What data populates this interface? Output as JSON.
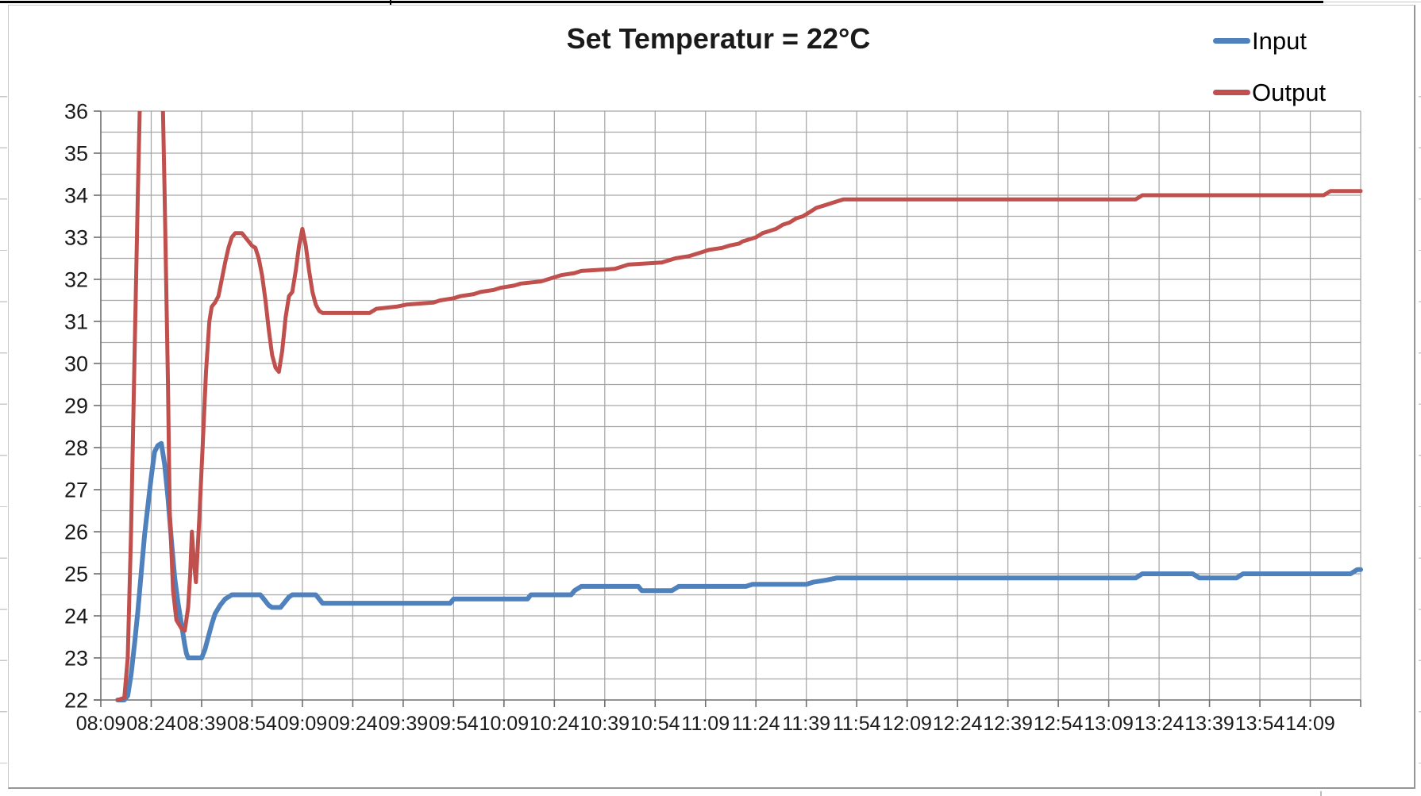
{
  "title": {
    "text": "Set Temperatur = 22°C"
  },
  "legend": {
    "entries": [
      {
        "label": "Input",
        "color": "#4F81BD"
      },
      {
        "label": "Output",
        "color": "#C0504D"
      }
    ]
  },
  "chart_data": {
    "type": "line",
    "title": "Set Temperatur = 22°C",
    "xlabel": "",
    "ylabel": "",
    "x_unit": "time (hh:mm)",
    "x_tick_labels": [
      "08:09",
      "08:24",
      "08:39",
      "08:54",
      "09:09",
      "09:24",
      "09:39",
      "09:54",
      "10:09",
      "10:24",
      "10:39",
      "10:54",
      "11:09",
      "11:24",
      "11:39",
      "11:54",
      "12:09",
      "12:24",
      "12:39",
      "12:54",
      "13:09",
      "13:24",
      "13:39",
      "13:54",
      "14:09"
    ],
    "x_tick_interval_minutes": 15,
    "x_range_minutes": [
      0,
      375
    ],
    "ylim": [
      22,
      36
    ],
    "y_major_step": 1,
    "y_minor_step": 0.5,
    "grid": {
      "major": true,
      "minor": true,
      "color": "#a6a6a6"
    },
    "legend_position": "top-right",
    "axis_color": "#6e6e6e",
    "label_color": "#1a1a1a",
    "series": [
      {
        "name": "Input",
        "color": "#4F81BD",
        "width": 6,
        "points": [
          [
            5,
            22
          ],
          [
            7,
            22
          ],
          [
            8,
            22.1
          ],
          [
            9,
            22.6
          ],
          [
            10,
            23.3
          ],
          [
            11,
            24.1
          ],
          [
            12,
            25
          ],
          [
            13,
            25.9
          ],
          [
            14,
            26.6
          ],
          [
            15,
            27.3
          ],
          [
            16,
            27.9
          ],
          [
            17,
            28.05
          ],
          [
            18,
            28.1
          ],
          [
            19,
            27.6
          ],
          [
            20,
            26.8
          ],
          [
            21,
            25.8
          ],
          [
            22,
            24.9
          ],
          [
            23,
            24.3
          ],
          [
            24,
            23.8
          ],
          [
            25,
            23.3
          ],
          [
            25.5,
            23.1
          ],
          [
            26,
            23
          ],
          [
            30,
            23
          ],
          [
            31,
            23.2
          ],
          [
            32,
            23.5
          ],
          [
            33,
            23.8
          ],
          [
            34,
            24.05
          ],
          [
            35.5,
            24.25
          ],
          [
            37,
            24.4
          ],
          [
            39,
            24.5
          ],
          [
            47.5,
            24.5
          ],
          [
            48.5,
            24.4
          ],
          [
            50,
            24.25
          ],
          [
            51,
            24.2
          ],
          [
            53.5,
            24.2
          ],
          [
            54.5,
            24.3
          ],
          [
            56,
            24.45
          ],
          [
            57,
            24.5
          ],
          [
            64,
            24.5
          ],
          [
            65,
            24.4
          ],
          [
            66,
            24.3
          ],
          [
            104,
            24.3
          ],
          [
            105,
            24.4
          ],
          [
            127,
            24.4
          ],
          [
            128,
            24.5
          ],
          [
            140,
            24.5
          ],
          [
            141,
            24.6
          ],
          [
            143,
            24.7
          ],
          [
            160,
            24.7
          ],
          [
            161,
            24.6
          ],
          [
            170,
            24.6
          ],
          [
            172,
            24.7
          ],
          [
            192,
            24.7
          ],
          [
            194,
            24.75
          ],
          [
            210,
            24.75
          ],
          [
            212,
            24.8
          ],
          [
            216,
            24.85
          ],
          [
            219,
            24.9
          ],
          [
            308,
            24.9
          ],
          [
            310,
            25
          ],
          [
            325,
            25
          ],
          [
            327,
            24.9
          ],
          [
            338,
            24.9
          ],
          [
            340,
            25
          ],
          [
            372,
            25
          ],
          [
            374,
            25.1
          ],
          [
            375,
            25.1
          ]
        ]
      },
      {
        "name": "Output",
        "color": "#C0504D",
        "width": 5,
        "points": [
          [
            5,
            22
          ],
          [
            7,
            22.05
          ],
          [
            8,
            23
          ],
          [
            9,
            26
          ],
          [
            10,
            30
          ],
          [
            11,
            34
          ],
          [
            12,
            37.5
          ],
          [
            13,
            39.5
          ],
          [
            17,
            39.5
          ],
          [
            18,
            38
          ],
          [
            19,
            34
          ],
          [
            20,
            29.5
          ],
          [
            20.5,
            26.5
          ],
          [
            21.5,
            24.6
          ],
          [
            22.5,
            23.9
          ],
          [
            24,
            23.7
          ],
          [
            25,
            23.65
          ],
          [
            26,
            24.2
          ],
          [
            26.6,
            25
          ],
          [
            27.1,
            26
          ],
          [
            27.7,
            25.3
          ],
          [
            28.3,
            24.8
          ],
          [
            29.3,
            26.3
          ],
          [
            30.3,
            28
          ],
          [
            31.3,
            29.8
          ],
          [
            32.3,
            31
          ],
          [
            33,
            31.35
          ],
          [
            34,
            31.45
          ],
          [
            35,
            31.6
          ],
          [
            36,
            32
          ],
          [
            37,
            32.4
          ],
          [
            38,
            32.75
          ],
          [
            39,
            33
          ],
          [
            40,
            33.1
          ],
          [
            42,
            33.1
          ],
          [
            43,
            33
          ],
          [
            44,
            32.9
          ],
          [
            45,
            32.8
          ],
          [
            46,
            32.75
          ],
          [
            47,
            32.5
          ],
          [
            48,
            32.1
          ],
          [
            49,
            31.5
          ],
          [
            50,
            30.8
          ],
          [
            51,
            30.2
          ],
          [
            52,
            29.9
          ],
          [
            53,
            29.8
          ],
          [
            54,
            30.3
          ],
          [
            55,
            31.1
          ],
          [
            56,
            31.6
          ],
          [
            57,
            31.7
          ],
          [
            58,
            32.2
          ],
          [
            59,
            32.8
          ],
          [
            60,
            33.2
          ],
          [
            61,
            32.8
          ],
          [
            62,
            32.2
          ],
          [
            63,
            31.7
          ],
          [
            64,
            31.4
          ],
          [
            65,
            31.25
          ],
          [
            66,
            31.2
          ],
          [
            80,
            31.2
          ],
          [
            82,
            31.3
          ],
          [
            88,
            31.35
          ],
          [
            91,
            31.4
          ],
          [
            99,
            31.45
          ],
          [
            101,
            31.5
          ],
          [
            105,
            31.55
          ],
          [
            107,
            31.6
          ],
          [
            111,
            31.65
          ],
          [
            113,
            31.7
          ],
          [
            117,
            31.75
          ],
          [
            119,
            31.8
          ],
          [
            123,
            31.85
          ],
          [
            125,
            31.9
          ],
          [
            131,
            31.95
          ],
          [
            133,
            32
          ],
          [
            135,
            32.05
          ],
          [
            137,
            32.1
          ],
          [
            141,
            32.15
          ],
          [
            143,
            32.2
          ],
          [
            153,
            32.25
          ],
          [
            155,
            32.3
          ],
          [
            157,
            32.35
          ],
          [
            167,
            32.4
          ],
          [
            169,
            32.45
          ],
          [
            171,
            32.5
          ],
          [
            175,
            32.55
          ],
          [
            177,
            32.6
          ],
          [
            179,
            32.65
          ],
          [
            181,
            32.7
          ],
          [
            185,
            32.75
          ],
          [
            187,
            32.8
          ],
          [
            190,
            32.85
          ],
          [
            191,
            32.9
          ],
          [
            195,
            33
          ],
          [
            197,
            33.1
          ],
          [
            199,
            33.15
          ],
          [
            201,
            33.2
          ],
          [
            203,
            33.3
          ],
          [
            205,
            33.35
          ],
          [
            207,
            33.45
          ],
          [
            209,
            33.5
          ],
          [
            211,
            33.6
          ],
          [
            213,
            33.7
          ],
          [
            215,
            33.75
          ],
          [
            217,
            33.8
          ],
          [
            219,
            33.85
          ],
          [
            221,
            33.9
          ],
          [
            308,
            33.9
          ],
          [
            310,
            34
          ],
          [
            364,
            34
          ],
          [
            366,
            34.1
          ],
          [
            375,
            34.1
          ]
        ]
      }
    ]
  }
}
